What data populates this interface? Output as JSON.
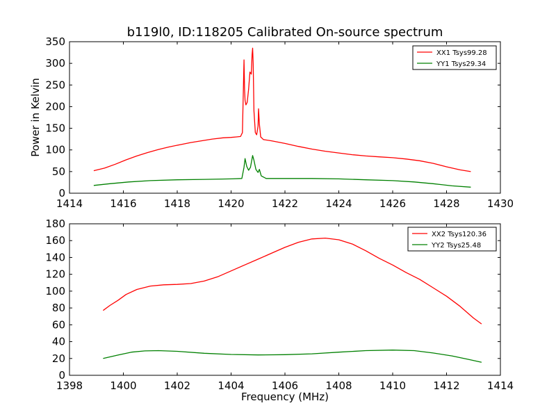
{
  "figure": {
    "title": "b119l0, ID:118205 Calibrated On-source spectrum",
    "ylabel": "Power in Kelvin",
    "xlabel": "Frequency (MHz)"
  },
  "chart_data": [
    {
      "type": "line",
      "title": "b119l0, ID:118205 Calibrated On-source spectrum",
      "xlabel": "",
      "ylabel": "Power in Kelvin",
      "xlim": [
        1414,
        1430
      ],
      "ylim": [
        0,
        350
      ],
      "xticks": [
        "1414",
        "1416",
        "1418",
        "1420",
        "1422",
        "1424",
        "1426",
        "1428",
        "1430"
      ],
      "yticks": [
        "0",
        "50",
        "100",
        "150",
        "200",
        "250",
        "300",
        "350"
      ],
      "legend_position": "top-right",
      "grid": false,
      "series": [
        {
          "name": "XX1 Tsys99.28",
          "color": "#ff0000",
          "x": [
            1414.9,
            1415.3,
            1415.7,
            1416.1,
            1416.5,
            1416.9,
            1417.3,
            1417.7,
            1418.1,
            1418.5,
            1418.9,
            1419.3,
            1419.7,
            1420.0,
            1420.2,
            1420.35,
            1420.42,
            1420.45,
            1420.48,
            1420.5,
            1420.52,
            1420.55,
            1420.6,
            1420.65,
            1420.7,
            1420.75,
            1420.78,
            1420.8,
            1420.82,
            1420.85,
            1420.9,
            1420.95,
            1421.0,
            1421.02,
            1421.05,
            1421.1,
            1421.2,
            1421.5,
            1422.0,
            1422.5,
            1423.0,
            1423.5,
            1424.0,
            1424.5,
            1425.0,
            1425.5,
            1426.0,
            1426.5,
            1427.0,
            1427.5,
            1428.0,
            1428.5,
            1428.9
          ],
          "y": [
            52,
            58,
            67,
            77,
            86,
            94,
            101,
            107,
            112,
            117,
            121,
            125,
            128,
            129,
            130,
            131,
            140,
            220,
            308,
            240,
            215,
            204,
            210,
            240,
            280,
            275,
            320,
            335,
            300,
            190,
            140,
            135,
            155,
            195,
            160,
            130,
            124,
            121,
            115,
            108,
            102,
            97,
            93,
            89,
            86,
            84,
            82,
            79,
            75,
            69,
            61,
            54,
            50
          ]
        },
        {
          "name": "YY1 Tsys29.34",
          "color": "#008000",
          "x": [
            1414.9,
            1415.5,
            1416.2,
            1417.0,
            1418.0,
            1419.0,
            1420.0,
            1420.4,
            1420.48,
            1420.52,
            1420.58,
            1420.65,
            1420.72,
            1420.8,
            1420.85,
            1420.92,
            1421.0,
            1421.05,
            1421.12,
            1421.3,
            1422.0,
            1423.0,
            1424.0,
            1425.0,
            1426.0,
            1426.8,
            1427.5,
            1428.2,
            1428.9
          ],
          "y": [
            18,
            22,
            26,
            29,
            31,
            32,
            33,
            34,
            60,
            80,
            62,
            53,
            60,
            87,
            76,
            55,
            48,
            55,
            40,
            34,
            34,
            34,
            33,
            31,
            29,
            26,
            22,
            17,
            14
          ]
        }
      ]
    },
    {
      "type": "line",
      "title": "",
      "xlabel": "Frequency (MHz)",
      "ylabel": "",
      "xlim": [
        1398,
        1414
      ],
      "ylim": [
        0,
        180
      ],
      "xticks": [
        "1398",
        "1400",
        "1402",
        "1404",
        "1406",
        "1408",
        "1410",
        "1412",
        "1414"
      ],
      "yticks": [
        "0",
        "20",
        "40",
        "60",
        "80",
        "100",
        "120",
        "140",
        "160",
        "180"
      ],
      "legend_position": "top-right",
      "grid": false,
      "series": [
        {
          "name": "XX2 Tsys120.36",
          "color": "#ff0000",
          "x": [
            1399.25,
            1399.5,
            1399.8,
            1400.1,
            1400.5,
            1401.0,
            1401.5,
            1402.0,
            1402.5,
            1403.0,
            1403.5,
            1404.0,
            1404.5,
            1405.0,
            1405.5,
            1406.0,
            1406.5,
            1407.0,
            1407.5,
            1408.0,
            1408.5,
            1409.0,
            1409.5,
            1410.0,
            1410.5,
            1411.0,
            1411.5,
            1412.0,
            1412.5,
            1413.0,
            1413.3
          ],
          "y": [
            77,
            83,
            89,
            96,
            102,
            106,
            107.5,
            108,
            109,
            112,
            117,
            124,
            131,
            138,
            145,
            152,
            158,
            162,
            163,
            161,
            156,
            148,
            139,
            131,
            122,
            114,
            104,
            94,
            82,
            68,
            61
          ]
        },
        {
          "name": "YY2 Tsys25.48",
          "color": "#008000",
          "x": [
            1399.25,
            1399.8,
            1400.3,
            1400.8,
            1401.3,
            1402.0,
            1403.0,
            1404.0,
            1405.0,
            1406.0,
            1407.0,
            1408.0,
            1409.0,
            1410.0,
            1410.8,
            1411.5,
            1412.2,
            1412.8,
            1413.3
          ],
          "y": [
            20,
            24,
            27.5,
            29,
            29.3,
            28.5,
            26.2,
            24.8,
            24.2,
            24.5,
            25.5,
            27.5,
            29.3,
            30,
            29.3,
            26.5,
            23,
            19,
            15.5
          ]
        }
      ]
    }
  ]
}
